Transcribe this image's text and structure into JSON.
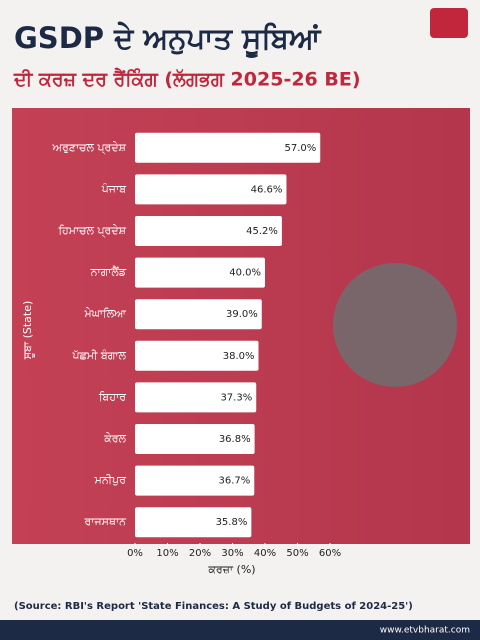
{
  "chart_data": {
    "type": "barh",
    "title": "GSDP ਦੇ ਅਨੁਪਾਤ ਸੂਬਿਆਂ",
    "subtitle": "ਦੀ ਕਰਜ਼ ਦਰ ਰੈਂਕਿੰਗ (ਲੱਗਭਗ 2025-26 BE)",
    "categories": [
      "ਅਰੁਣਾਚਲ ਪ੍ਰਦੇਸ਼",
      "ਪੰਜਾਬ",
      "ਹਿਮਾਚਲ ਪ੍ਰਦੇਸ਼",
      "ਨਾਗਾਲੈਂਡ",
      "ਮੇਘਾਲਿਆ",
      "ਪੱਛਮੀ ਬੰਗਾਲ",
      "ਬਿਹਾਰ",
      "ਕੇਰਲ",
      "ਮਨੀਪੁਰ",
      "ਰਾਜਸਥਾਨ"
    ],
    "values": [
      57.0,
      46.6,
      45.2,
      40.0,
      39.0,
      38.0,
      37.3,
      36.8,
      36.7,
      35.8
    ],
    "value_labels": [
      "57.0%",
      "46.6%",
      "45.2%",
      "40.0%",
      "39.0%",
      "38.0%",
      "37.3%",
      "36.8%",
      "36.7%",
      "35.8%"
    ],
    "color": "#ffffff",
    "xlim": [
      0,
      60
    ],
    "xticks": [
      {
        "value": 0,
        "label": "0%"
      },
      {
        "value": 10,
        "label": "10%"
      },
      {
        "value": 20,
        "label": "20%"
      },
      {
        "value": 30,
        "label": "30%"
      },
      {
        "value": 40,
        "label": "40%"
      },
      {
        "value": 50,
        "label": "50%"
      },
      {
        "value": 60,
        "label": "60%"
      }
    ],
    "xlabel": "ਕਰਜ਼ਾ (%)",
    "ylabel": "ਸੂਬਾ (State)",
    "source": "(Source: RBI's Report 'State Finances: A Study of Budgets of 2024-25')"
  },
  "footer": {
    "website": "www.etvbharat.com"
  }
}
